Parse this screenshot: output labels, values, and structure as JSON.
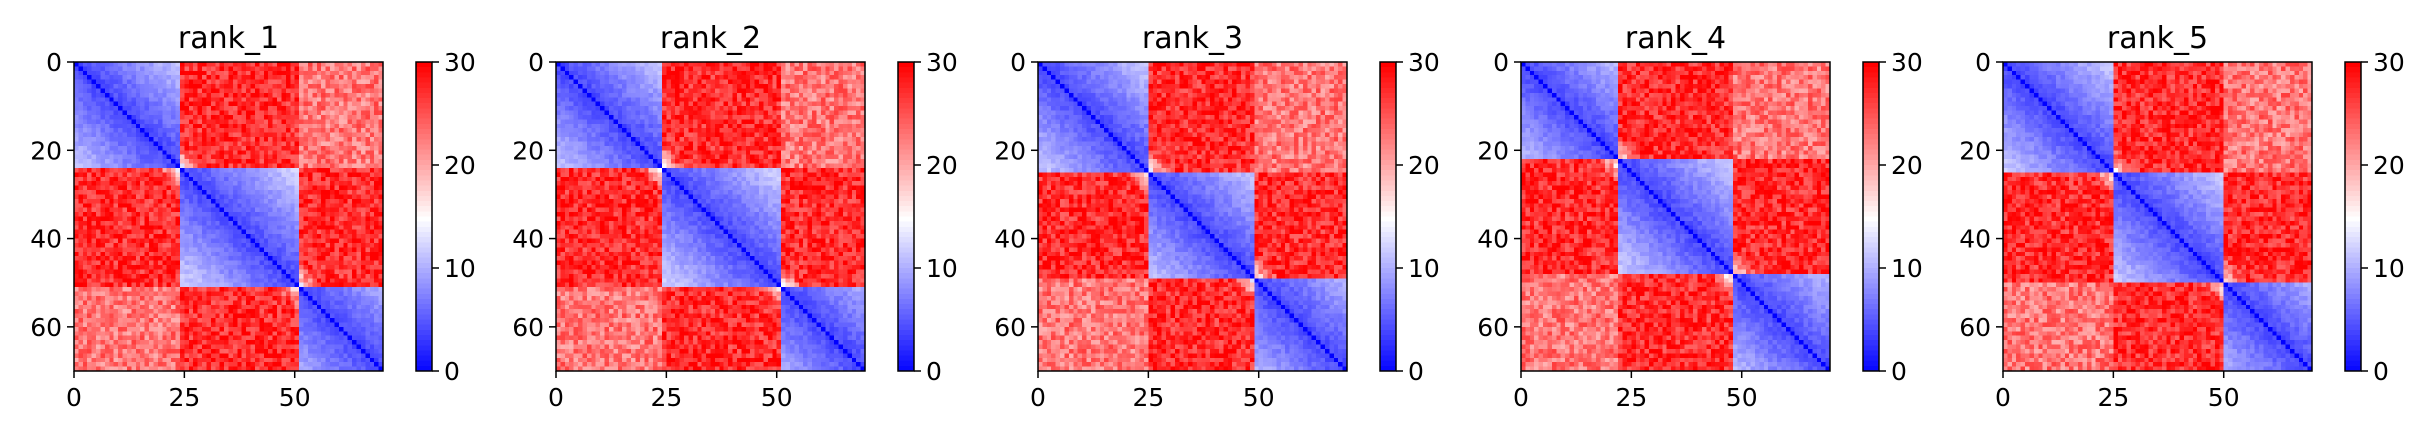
{
  "colors": {
    "low": "#0000ff",
    "mid": "#ffffff",
    "high": "#ff0000"
  },
  "chart_data": [
    {
      "type": "heatmap",
      "title": "rank_1",
      "n": 70,
      "xticks": [
        0,
        25,
        50
      ],
      "yticks": [
        0,
        20,
        40,
        60
      ],
      "xlim": [
        0,
        70
      ],
      "ylim": [
        70,
        0
      ],
      "colorbar": {
        "min": 0,
        "max": 30,
        "ticks": [
          0,
          10,
          20,
          30
        ],
        "colormap": "bwr"
      },
      "domain_breaks": [
        24,
        51
      ]
    },
    {
      "type": "heatmap",
      "title": "rank_2",
      "n": 70,
      "xticks": [
        0,
        25,
        50
      ],
      "yticks": [
        0,
        20,
        40,
        60
      ],
      "xlim": [
        0,
        70
      ],
      "ylim": [
        70,
        0
      ],
      "colorbar": {
        "min": 0,
        "max": 30,
        "ticks": [
          0,
          10,
          20,
          30
        ],
        "colormap": "bwr"
      },
      "domain_breaks": [
        24,
        51
      ]
    },
    {
      "type": "heatmap",
      "title": "rank_3",
      "n": 70,
      "xticks": [
        0,
        25,
        50
      ],
      "yticks": [
        0,
        20,
        40,
        60
      ],
      "xlim": [
        0,
        70
      ],
      "ylim": [
        70,
        0
      ],
      "colorbar": {
        "min": 0,
        "max": 30,
        "ticks": [
          0,
          10,
          20,
          30
        ],
        "colormap": "bwr"
      },
      "domain_breaks": [
        25,
        49
      ]
    },
    {
      "type": "heatmap",
      "title": "rank_4",
      "n": 70,
      "xticks": [
        0,
        25,
        50
      ],
      "yticks": [
        0,
        20,
        40,
        60
      ],
      "xlim": [
        0,
        70
      ],
      "ylim": [
        70,
        0
      ],
      "colorbar": {
        "min": 0,
        "max": 30,
        "ticks": [
          0,
          10,
          20,
          30
        ],
        "colormap": "bwr"
      },
      "domain_breaks": [
        22,
        48
      ]
    },
    {
      "type": "heatmap",
      "title": "rank_5",
      "n": 70,
      "xticks": [
        0,
        25,
        50
      ],
      "yticks": [
        0,
        20,
        40,
        60
      ],
      "xlim": [
        0,
        70
      ],
      "ylim": [
        70,
        0
      ],
      "colorbar": {
        "min": 0,
        "max": 30,
        "ticks": [
          0,
          10,
          20,
          30
        ],
        "colormap": "bwr"
      },
      "domain_breaks": [
        25,
        50
      ]
    }
  ]
}
